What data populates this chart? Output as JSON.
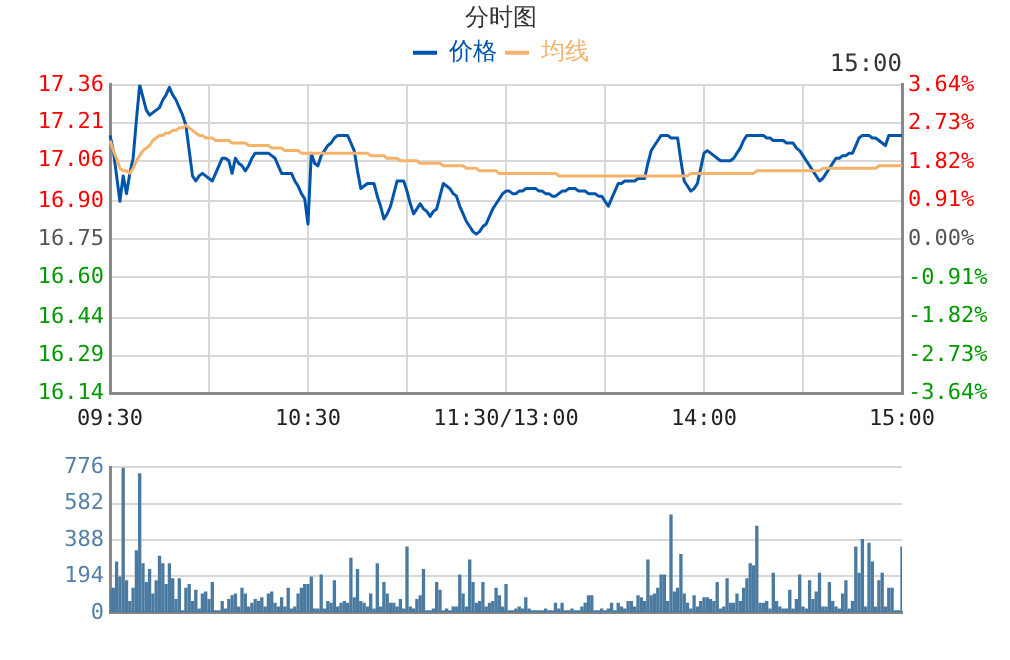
{
  "chart_data": [
    {
      "type": "line",
      "title": "分时图",
      "legend": "top",
      "marker": "none",
      "line_style": "solid",
      "grid": true,
      "annotations": [
        "15:00"
      ],
      "categories": [
        "09:30",
        null,
        null,
        null,
        null,
        null,
        null,
        null,
        null,
        null,
        null,
        null,
        null,
        null,
        null,
        null,
        null,
        null,
        null,
        null,
        null,
        null,
        null,
        null,
        null,
        null,
        null,
        null,
        null,
        null,
        null,
        null,
        null,
        null,
        null,
        null,
        null,
        null,
        null,
        null,
        null,
        null,
        null,
        null,
        null,
        null,
        null,
        null,
        null,
        null,
        null,
        null,
        null,
        null,
        null,
        null,
        null,
        null,
        null,
        null,
        "10:30",
        null,
        null,
        null,
        null,
        null,
        null,
        null,
        null,
        null,
        null,
        null,
        null,
        null,
        null,
        null,
        null,
        null,
        null,
        null,
        null,
        null,
        null,
        null,
        null,
        null,
        null,
        null,
        null,
        null,
        null,
        null,
        null,
        null,
        null,
        null,
        null,
        null,
        null,
        null,
        null,
        null,
        null,
        null,
        null,
        null,
        null,
        null,
        null,
        null,
        null,
        null,
        null,
        null,
        null,
        null,
        null,
        null,
        null,
        null,
        "11:30/13:00",
        null,
        null,
        null,
        null,
        null,
        null,
        null,
        null,
        null,
        null,
        null,
        null,
        null,
        null,
        null,
        null,
        null,
        null,
        null,
        null,
        null,
        null,
        null,
        null,
        null,
        null,
        null,
        null,
        null,
        null,
        null,
        null,
        null,
        null,
        null,
        null,
        null,
        null,
        null,
        null,
        null,
        null,
        null,
        null,
        null,
        null,
        null,
        null,
        null,
        null,
        null,
        null,
        null,
        null,
        null,
        null,
        null,
        null,
        null,
        "14:00",
        null,
        null,
        null,
        null,
        null,
        null,
        null,
        null,
        null,
        null,
        null,
        null,
        null,
        null,
        null,
        null,
        null,
        null,
        null,
        null,
        null,
        null,
        null,
        null,
        null,
        null,
        null,
        null,
        null,
        null,
        null,
        null,
        null,
        null,
        null,
        null,
        null,
        null,
        null,
        null,
        null,
        null,
        null,
        null,
        null,
        null,
        null,
        null,
        null,
        null,
        null,
        null,
        null,
        null,
        null,
        null,
        null,
        null,
        null,
        "15:00"
      ],
      "ylim": [
        16.14,
        17.36
      ],
      "yticks": [
        16.14,
        16.29,
        16.44,
        {
          "value": 16.6,
          "label": "16.60"
        },
        16.75,
        {
          "value": 16.9,
          "label": "16.90"
        },
        17.06,
        17.21,
        17.36
      ],
      "y2lim": [
        -3.64,
        3.64
      ],
      "y2ticks": [
        {
          "value": -3.64,
          "label": "-3.64%"
        },
        {
          "value": -2.73,
          "label": "-2.73%"
        },
        {
          "value": -1.82,
          "label": "-1.82%"
        },
        {
          "value": -0.91,
          "label": "-0.91%"
        },
        {
          "value": 0,
          "label": "0.00%"
        },
        {
          "value": 0.91,
          "label": "0.91%"
        },
        {
          "value": 1.82,
          "label": "1.82%"
        },
        {
          "value": 2.73,
          "label": "2.73%"
        },
        {
          "value": 3.64,
          "label": "3.64%"
        }
      ],
      "series": [
        {
          "name": "价格",
          "color": "#0055aa",
          "values": [
            17.16,
            17.1,
            17.0,
            16.9,
            17.0,
            16.93,
            17.01,
            17.07,
            17.22,
            17.36,
            17.31,
            17.26,
            17.24,
            17.25,
            17.26,
            17.27,
            17.3,
            17.32,
            17.35,
            17.32,
            17.3,
            17.27,
            17.24,
            17.2,
            17.1,
            17.0,
            16.98,
            17.0,
            17.01,
            17.0,
            16.99,
            16.98,
            17.01,
            17.04,
            17.07,
            17.07,
            17.06,
            17.01,
            17.07,
            17.05,
            17.04,
            17.02,
            17.04,
            17.07,
            17.09,
            17.09,
            17.09,
            17.09,
            17.09,
            17.08,
            17.07,
            17.04,
            17.01,
            17.01,
            17.01,
            17.01,
            16.98,
            16.96,
            16.93,
            16.91,
            16.81,
            17.09,
            17.05,
            17.04,
            17.08,
            17.1,
            17.12,
            17.13,
            17.15,
            17.16,
            17.16,
            17.16,
            17.16,
            17.13,
            17.1,
            17.02,
            16.95,
            16.96,
            16.97,
            16.97,
            16.97,
            16.92,
            16.88,
            16.83,
            16.85,
            16.88,
            16.93,
            16.98,
            16.98,
            16.98,
            16.94,
            16.89,
            16.85,
            16.87,
            16.89,
            16.87,
            16.86,
            16.84,
            16.86,
            16.87,
            16.92,
            16.97,
            16.96,
            16.95,
            16.93,
            16.92,
            16.88,
            16.85,
            16.82,
            16.8,
            16.78,
            16.77,
            16.78,
            16.8,
            16.81,
            16.84,
            16.87,
            16.89,
            16.91,
            16.93,
            16.94,
            16.94,
            16.93,
            16.93,
            16.94,
            16.94,
            16.95,
            16.95,
            16.95,
            16.95,
            16.94,
            16.94,
            16.93,
            16.93,
            16.92,
            16.92,
            16.93,
            16.94,
            16.94,
            16.95,
            16.95,
            16.95,
            16.94,
            16.94,
            16.94,
            16.93,
            16.93,
            16.93,
            16.92,
            16.92,
            16.9,
            16.88,
            16.91,
            16.94,
            16.97,
            16.97,
            16.98,
            16.98,
            16.98,
            16.98,
            16.99,
            16.99,
            16.99,
            17.05,
            17.1,
            17.12,
            17.14,
            17.16,
            17.16,
            17.16,
            17.15,
            17.15,
            17.15,
            17.06,
            16.98,
            16.96,
            16.94,
            16.95,
            16.97,
            17.03,
            17.09,
            17.1,
            17.09,
            17.08,
            17.07,
            17.06,
            17.06,
            17.06,
            17.06,
            17.07,
            17.09,
            17.11,
            17.14,
            17.16,
            17.16,
            17.16,
            17.16,
            17.16,
            17.16,
            17.15,
            17.15,
            17.14,
            17.14,
            17.14,
            17.14,
            17.13,
            17.13,
            17.13,
            17.11,
            17.1,
            17.08,
            17.06,
            17.04,
            17.02,
            17.0,
            16.98,
            16.99,
            17.01,
            17.03,
            17.05,
            17.07,
            17.07,
            17.08,
            17.08,
            17.09,
            17.09,
            17.12,
            17.15,
            17.16,
            17.16,
            17.16,
            17.15,
            17.15,
            17.14,
            17.13,
            17.12,
            17.16,
            17.16,
            17.16,
            17.16,
            17.16
          ]
        },
        {
          "name": "均线",
          "color": "#f4b26b",
          "values": [
            17.14,
            17.1,
            17.07,
            17.03,
            17.02,
            17.02,
            17.01,
            17.03,
            17.06,
            17.08,
            17.1,
            17.11,
            17.12,
            17.14,
            17.15,
            17.16,
            17.16,
            17.17,
            17.17,
            17.18,
            17.18,
            17.19,
            17.19,
            17.2,
            17.19,
            17.18,
            17.17,
            17.16,
            17.16,
            17.15,
            17.15,
            17.15,
            17.14,
            17.14,
            17.14,
            17.14,
            17.14,
            17.13,
            17.13,
            17.13,
            17.13,
            17.13,
            17.12,
            17.12,
            17.12,
            17.12,
            17.12,
            17.12,
            17.12,
            17.11,
            17.11,
            17.11,
            17.11,
            17.1,
            17.1,
            17.1,
            17.1,
            17.1,
            17.09,
            17.09,
            17.09,
            17.09,
            17.09,
            17.09,
            17.09,
            17.09,
            17.09,
            17.09,
            17.09,
            17.09,
            17.09,
            17.09,
            17.09,
            17.09,
            17.09,
            17.09,
            17.09,
            17.09,
            17.09,
            17.08,
            17.08,
            17.08,
            17.08,
            17.08,
            17.07,
            17.07,
            17.07,
            17.07,
            17.06,
            17.06,
            17.06,
            17.06,
            17.06,
            17.06,
            17.05,
            17.05,
            17.05,
            17.05,
            17.05,
            17.05,
            17.05,
            17.04,
            17.04,
            17.04,
            17.04,
            17.04,
            17.04,
            17.04,
            17.03,
            17.03,
            17.03,
            17.03,
            17.02,
            17.02,
            17.02,
            17.02,
            17.02,
            17.02,
            17.01,
            17.01,
            17.01,
            17.01,
            17.01,
            17.01,
            17.01,
            17.01,
            17.01,
            17.01,
            17.01,
            17.01,
            17.01,
            17.01,
            17.01,
            17.01,
            17.01,
            17.01,
            17.0,
            17.0,
            17.0,
            17.0,
            17.0,
            17.0,
            17.0,
            17.0,
            17.0,
            17.0,
            17.0,
            17.0,
            17.0,
            17.0,
            17.0,
            17.0,
            17.0,
            17.0,
            17.0,
            17.0,
            17.0,
            17.0,
            17.0,
            17.0,
            17.0,
            17.0,
            17.0,
            17.0,
            17.0,
            17.0,
            17.0,
            17.0,
            17.0,
            17.0,
            17.0,
            17.0,
            17.0,
            17.0,
            17.0,
            17.0,
            17.01,
            17.01,
            17.01,
            17.01,
            17.01,
            17.01,
            17.01,
            17.01,
            17.01,
            17.01,
            17.01,
            17.01,
            17.01,
            17.01,
            17.01,
            17.01,
            17.01,
            17.01,
            17.01,
            17.01,
            17.02,
            17.02,
            17.02,
            17.02,
            17.02,
            17.02,
            17.02,
            17.02,
            17.02,
            17.02,
            17.02,
            17.02,
            17.02,
            17.02,
            17.02,
            17.02,
            17.02,
            17.02,
            17.02,
            17.02,
            17.03,
            17.03,
            17.03,
            17.03,
            17.03,
            17.03,
            17.03,
            17.03,
            17.03,
            17.03,
            17.03,
            17.03,
            17.03,
            17.03,
            17.03,
            17.03,
            17.03,
            17.04,
            17.04,
            17.04,
            17.04,
            17.04,
            17.04,
            17.04,
            17.04
          ]
        }
      ]
    },
    {
      "type": "bar",
      "color": "#4a7aa0",
      "grid": "y",
      "tick_labels": "y",
      "categories": [
        null,
        null,
        null,
        null,
        null,
        null,
        null,
        null,
        null,
        null,
        null,
        null,
        null,
        null,
        null,
        null,
        null,
        null,
        null,
        null,
        null,
        null,
        null,
        null,
        null,
        null,
        null,
        null,
        null,
        null,
        null,
        null,
        null,
        null,
        null,
        null,
        null,
        null,
        null,
        null,
        null,
        null,
        null,
        null,
        null,
        null,
        null,
        null,
        null,
        null,
        null,
        null,
        null,
        null,
        null,
        null,
        null,
        null,
        null,
        null,
        null,
        null,
        null,
        null,
        null,
        null,
        null,
        null,
        null,
        null,
        null,
        null,
        null,
        null,
        null,
        null,
        null,
        null,
        null,
        null,
        null,
        null,
        null,
        null,
        null,
        null,
        null,
        null,
        null,
        null,
        null,
        null,
        null,
        null,
        null,
        null,
        null,
        null,
        null,
        null,
        null,
        null,
        null,
        null,
        null,
        null,
        null,
        null,
        null,
        null,
        null,
        null,
        null,
        null,
        null,
        null,
        null,
        null,
        null,
        null,
        null,
        null,
        null,
        null,
        null,
        null,
        null,
        null,
        null,
        null,
        null,
        null,
        null,
        null,
        null,
        null,
        null,
        null,
        null,
        null,
        null,
        null,
        null,
        null,
        null,
        null,
        null,
        null,
        null,
        null,
        null,
        null,
        null,
        null,
        null,
        null,
        null,
        null,
        null,
        null,
        null,
        null,
        null,
        null,
        null,
        null,
        null,
        null,
        null,
        null,
        null,
        null,
        null,
        null,
        null,
        null,
        null,
        null,
        null,
        null,
        null,
        null,
        null,
        null,
        null,
        null,
        null,
        null,
        null,
        null,
        null,
        null,
        null,
        null,
        null,
        null,
        null,
        null,
        null,
        null,
        null,
        null,
        null,
        null,
        null,
        null,
        null,
        null,
        null,
        null,
        null,
        null,
        null,
        null,
        null,
        null,
        null,
        null,
        null,
        null,
        null,
        null,
        null,
        null,
        null,
        null,
        null,
        null,
        null,
        null,
        null,
        null,
        null,
        null,
        null,
        null,
        null,
        null,
        null,
        null,
        null
      ],
      "ylim": [
        0,
        776
      ],
      "yticks": [
        0,
        194,
        388,
        582,
        776
      ],
      "values": [
        120,
        130,
        270,
        190,
        770,
        170,
        60,
        130,
        330,
        740,
        260,
        160,
        230,
        100,
        170,
        300,
        260,
        150,
        260,
        180,
        70,
        180,
        10,
        130,
        150,
        60,
        120,
        20,
        100,
        110,
        70,
        160,
        10,
        10,
        60,
        20,
        70,
        90,
        100,
        30,
        130,
        100,
        30,
        50,
        70,
        60,
        80,
        30,
        100,
        110,
        50,
        30,
        80,
        30,
        130,
        20,
        30,
        100,
        130,
        150,
        150,
        190,
        20,
        20,
        200,
        20,
        60,
        50,
        170,
        30,
        50,
        60,
        50,
        290,
        80,
        230,
        60,
        50,
        30,
        100,
        20,
        260,
        30,
        160,
        100,
        50,
        50,
        30,
        70,
        20,
        350,
        30,
        20,
        70,
        90,
        230,
        10,
        10,
        20,
        160,
        120,
        10,
        20,
        10,
        30,
        30,
        200,
        100,
        30,
        280,
        160,
        50,
        60,
        160,
        30,
        50,
        60,
        130,
        90,
        30,
        150,
        10,
        10,
        20,
        30,
        20,
        80,
        20,
        10,
        10,
        10,
        10,
        20,
        10,
        10,
        50,
        20,
        50,
        10,
        10,
        20,
        10,
        10,
        30,
        50,
        90,
        90,
        10,
        10,
        20,
        10,
        20,
        50,
        10,
        50,
        30,
        20,
        60,
        60,
        30,
        90,
        80,
        60,
        280,
        90,
        100,
        130,
        200,
        200,
        60,
        520,
        110,
        130,
        310,
        100,
        50,
        20,
        90,
        30,
        60,
        80,
        80,
        70,
        60,
        160,
        20,
        30,
        180,
        50,
        50,
        100,
        60,
        130,
        180,
        260,
        250,
        460,
        50,
        50,
        60,
        20,
        210,
        60,
        30,
        20,
        20,
        120,
        20,
        70,
        200,
        30,
        20,
        170,
        70,
        110,
        210,
        30,
        30,
        160,
        60,
        30,
        20,
        100,
        170,
        20,
        60,
        350,
        210,
        390,
        30,
        370,
        270,
        30,
        170,
        210,
        30,
        130,
        130,
        10,
        10,
        350
      ]
    }
  ]
}
